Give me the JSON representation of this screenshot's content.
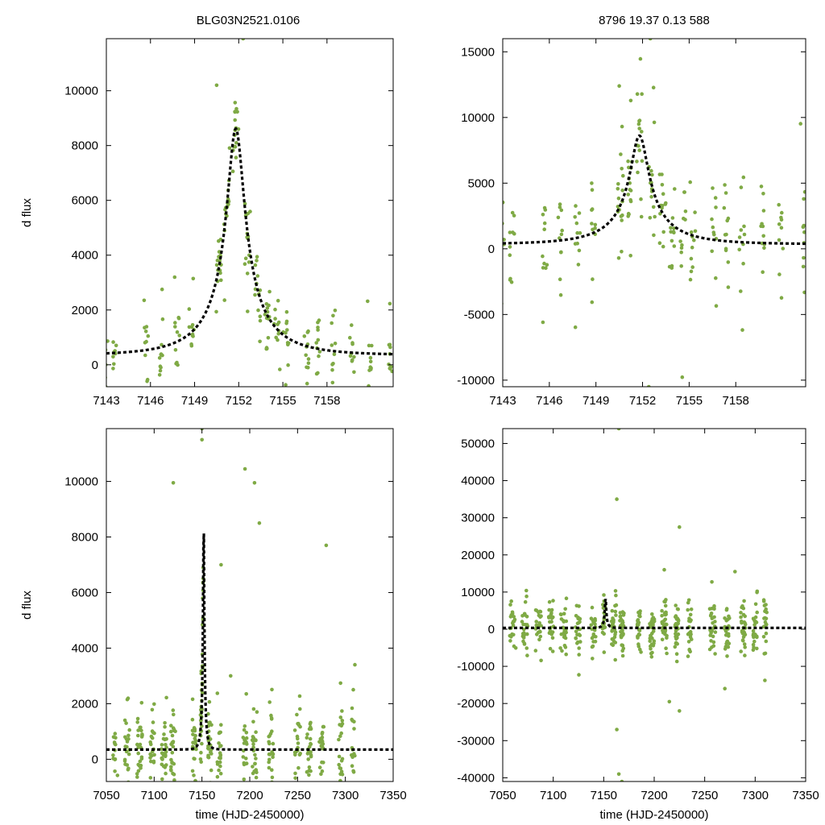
{
  "header": {
    "title_left": "BLG03N2521.0106",
    "title_right": "8796  19.37  0.13  588"
  },
  "colors": {
    "points": "#7faa45",
    "model": "#000000",
    "frame": "#000000"
  },
  "chart_data": [
    {
      "id": "zoom-left",
      "type": "scatter",
      "ylabel": "d flux",
      "xlabel": "",
      "xlim": [
        7143,
        7162.5
      ],
      "ylim": [
        -800,
        11900
      ],
      "xticks": [
        7143,
        7146,
        7149,
        7152,
        7155,
        7158
      ],
      "yticks": [
        0,
        2000,
        4000,
        6000,
        8000,
        10000
      ],
      "series": [
        {
          "name": "data",
          "kind": "points",
          "seed": 11,
          "scatter_frac": 0.06,
          "clusters": [
            [
              7143,
              0.4,
              0.12
            ],
            [
              7143.6,
              0.3,
              0.12
            ],
            [
              7145.7,
              0.3,
              0.14
            ],
            [
              7146.7,
              0.3,
              0.14
            ],
            [
              7147.8,
              0.35,
              0.14
            ],
            [
              7148.8,
              0.35,
              0.14
            ],
            [
              7150.6,
              0.4,
              0.2
            ],
            [
              7151.2,
              0.4,
              0.2
            ],
            [
              7151.8,
              0.4,
              0.2
            ],
            [
              7152.6,
              0.4,
              0.18
            ],
            [
              7153.3,
              0.4,
              0.16
            ],
            [
              7153.9,
              0.4,
              0.16
            ],
            [
              7154.6,
              0.4,
              0.14
            ],
            [
              7155.2,
              0.4,
              0.14
            ],
            [
              7156.6,
              0.3,
              0.14
            ],
            [
              7157.4,
              0.3,
              0.14
            ],
            [
              7158.4,
              0.35,
              0.14
            ],
            [
              7159.7,
              0.3,
              0.14
            ],
            [
              7160.9,
              0.3,
              0.12
            ],
            [
              7162.3,
              0.3,
              0.12
            ]
          ],
          "outliers": [
            [
              7150.8,
              3650
            ],
            [
              7152.3,
              11900
            ],
            [
              7152.6,
              1950
            ],
            [
              7150.5,
              10200
            ]
          ]
        },
        {
          "name": "model",
          "kind": "pspl",
          "t0": 7151.8,
          "u0": 0.146,
          "tE": 4.1,
          "fs": 1400,
          "base": -1050
        }
      ]
    },
    {
      "id": "zoom-right",
      "type": "scatter",
      "ylabel": "",
      "xlabel": "",
      "xlim": [
        7143,
        7162.5
      ],
      "ylim": [
        -10500,
        16000
      ],
      "xticks": [
        7143,
        7146,
        7149,
        7152,
        7155,
        7158
      ],
      "yticks": [
        -10000,
        -5000,
        0,
        5000,
        10000,
        15000
      ],
      "series": [
        {
          "name": "data",
          "kind": "points",
          "seed": 23,
          "scatter_frac": 0.09,
          "clusters": [
            [
              7143,
              0.4,
              0.12
            ],
            [
              7143.6,
              0.3,
              0.12
            ],
            [
              7145.7,
              0.3,
              0.14
            ],
            [
              7146.7,
              0.3,
              0.14
            ],
            [
              7147.8,
              0.35,
              0.14
            ],
            [
              7148.8,
              0.35,
              0.14
            ],
            [
              7150.6,
              0.4,
              0.2
            ],
            [
              7151.2,
              0.4,
              0.2
            ],
            [
              7151.8,
              0.4,
              0.2
            ],
            [
              7152.6,
              0.4,
              0.18
            ],
            [
              7153.3,
              0.4,
              0.16
            ],
            [
              7153.9,
              0.4,
              0.16
            ],
            [
              7154.6,
              0.4,
              0.14
            ],
            [
              7155.2,
              0.4,
              0.14
            ],
            [
              7156.6,
              0.3,
              0.14
            ],
            [
              7157.4,
              0.3,
              0.14
            ],
            [
              7158.4,
              0.35,
              0.14
            ],
            [
              7159.7,
              0.3,
              0.14
            ],
            [
              7160.9,
              0.3,
              0.12
            ],
            [
              7162.3,
              0.3,
              0.12
            ]
          ],
          "outliers": [
            [
              7150.5,
              12400
            ],
            [
              7152.5,
              16000
            ],
            [
              7152.4,
              -10500
            ],
            [
              7150.7,
              3600
            ]
          ]
        },
        {
          "name": "model",
          "kind": "pspl",
          "t0": 7151.8,
          "u0": 0.146,
          "tE": 4.1,
          "fs": 1400,
          "base": -1050
        }
      ]
    },
    {
      "id": "full-left",
      "type": "scatter",
      "ylabel": "d flux",
      "xlabel": "time (HJD-2450000)",
      "xlim": [
        7050,
        7350
      ],
      "ylim": [
        -800,
        11900
      ],
      "xticks": [
        7050,
        7100,
        7150,
        7200,
        7250,
        7300,
        7350
      ],
      "yticks": [
        0,
        2000,
        4000,
        6000,
        8000,
        10000
      ],
      "series": [
        {
          "name": "data",
          "kind": "points",
          "seed": 37,
          "scatter_frac": 0.06,
          "clusters": [
            [
              7060,
              6,
              0.18
            ],
            [
              7072,
              6,
              0.28
            ],
            [
              7085,
              6,
              0.32
            ],
            [
              7098,
              5,
              0.28
            ],
            [
              7110,
              6,
              0.35
            ],
            [
              7120,
              5,
              0.35
            ],
            [
              7142,
              4,
              0.3
            ],
            [
              7150,
              3,
              0.5
            ],
            [
              7158,
              4,
              0.3
            ],
            [
              7168,
              4,
              0.25
            ],
            [
              7195,
              4,
              0.25
            ],
            [
              7205,
              5,
              0.35
            ],
            [
              7222,
              6,
              0.3
            ],
            [
              7250,
              6,
              0.3
            ],
            [
              7262,
              5,
              0.35
            ],
            [
              7275,
              5,
              0.3
            ],
            [
              7295,
              4,
              0.25
            ],
            [
              7308,
              4,
              0.2
            ]
          ],
          "outliers": [
            [
              7150,
              11900
            ],
            [
              7150,
              11500
            ],
            [
              7120,
              9950
            ],
            [
              7195,
              10450
            ],
            [
              7205,
              9950
            ],
            [
              7210,
              8500
            ],
            [
              7280,
              7700
            ],
            [
              7310,
              3400
            ],
            [
              7170,
              7000
            ],
            [
              7180,
              3000
            ]
          ]
        },
        {
          "name": "model",
          "kind": "pspl",
          "t0": 7151.8,
          "u0": 0.146,
          "tE": 4.1,
          "fs": 1400,
          "base": -1050
        }
      ]
    },
    {
      "id": "full-right",
      "type": "scatter",
      "ylabel": "",
      "xlabel": "time (HJD-2450000)",
      "xlim": [
        7050,
        7350
      ],
      "ylim": [
        -41000,
        54000
      ],
      "xticks": [
        7050,
        7100,
        7150,
        7200,
        7250,
        7300,
        7350
      ],
      "yticks": [
        -40000,
        -30000,
        -20000,
        -10000,
        0,
        10000,
        20000,
        30000,
        40000,
        50000
      ],
      "series": [
        {
          "name": "data",
          "kind": "points",
          "seed": 53,
          "scatter_frac": 0.04,
          "clusters": [
            [
              7060,
              6,
              0.28
            ],
            [
              7072,
              6,
              0.3
            ],
            [
              7085,
              6,
              0.3
            ],
            [
              7098,
              5,
              0.28
            ],
            [
              7110,
              6,
              0.3
            ],
            [
              7125,
              6,
              0.3
            ],
            [
              7140,
              5,
              0.28
            ],
            [
              7150,
              3,
              0.3
            ],
            [
              7160,
              5,
              0.4
            ],
            [
              7168,
              4,
              0.4
            ],
            [
              7185,
              4,
              0.3
            ],
            [
              7198,
              5,
              0.4
            ],
            [
              7210,
              5,
              0.45
            ],
            [
              7222,
              5,
              0.4
            ],
            [
              7235,
              4,
              0.3
            ],
            [
              7258,
              6,
              0.35
            ],
            [
              7272,
              5,
              0.35
            ],
            [
              7288,
              5,
              0.35
            ],
            [
              7300,
              4,
              0.35
            ],
            [
              7310,
              3,
              0.25
            ]
          ],
          "outliers": [
            [
              7165,
              54000
            ],
            [
              7163,
              35000
            ],
            [
              7225,
              27500
            ],
            [
              7168,
              -41000
            ],
            [
              7165,
              -39000
            ],
            [
              7163,
              -27000
            ],
            [
              7210,
              16000
            ],
            [
              7280,
              15500
            ],
            [
              7225,
              -22000
            ],
            [
              7215,
              -19500
            ],
            [
              7270,
              -16000
            ]
          ]
        },
        {
          "name": "model",
          "kind": "pspl",
          "t0": 7151.8,
          "u0": 0.146,
          "tE": 4.1,
          "fs": 1400,
          "base": -1050
        }
      ]
    }
  ]
}
